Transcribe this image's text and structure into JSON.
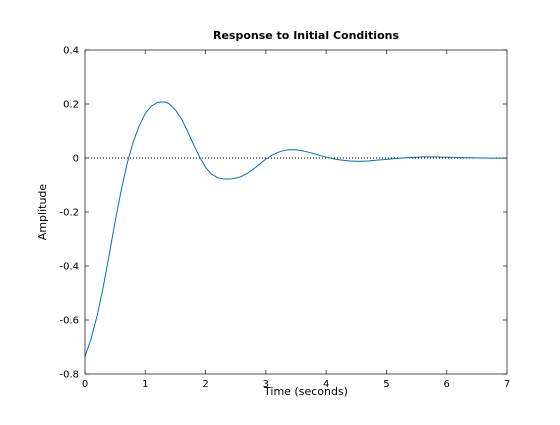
{
  "chart_data": {
    "type": "line",
    "title": "Response to Initial Conditions",
    "xlabel": "Time (seconds)",
    "ylabel": "Amplitude",
    "xlim": [
      0,
      7
    ],
    "ylim": [
      -0.8,
      0.4
    ],
    "x_ticks": [
      0,
      1,
      2,
      3,
      4,
      5,
      6,
      7
    ],
    "y_ticks": [
      -0.8,
      -0.6,
      -0.4,
      -0.2,
      0,
      0.2,
      0.4
    ],
    "grid": false,
    "reference_line": {
      "y": 0,
      "style": "dotted",
      "color": "#000000"
    },
    "series": [
      {
        "color": "#0072bd",
        "x": [
          0,
          0.1,
          0.2,
          0.3,
          0.4,
          0.5,
          0.6,
          0.7,
          0.8,
          0.9,
          1.0,
          1.1,
          1.2,
          1.3,
          1.35,
          1.4,
          1.5,
          1.6,
          1.7,
          1.8,
          1.9,
          2.0,
          2.1,
          2.2,
          2.3,
          2.4,
          2.5,
          2.55,
          2.6,
          2.7,
          2.8,
          2.9,
          3.0,
          3.1,
          3.2,
          3.3,
          3.4,
          3.5,
          3.6,
          3.7,
          3.8,
          3.9,
          4.0,
          4.1,
          4.2,
          4.3,
          4.4,
          4.5,
          4.6,
          4.7,
          4.8,
          4.9,
          5.0,
          5.2,
          5.4,
          5.6,
          5.8,
          6.0,
          6.2,
          6.4,
          6.6,
          6.8,
          7.0
        ],
        "y": [
          -0.735,
          -0.67,
          -0.585,
          -0.48,
          -0.36,
          -0.235,
          -0.12,
          -0.02,
          0.06,
          0.12,
          0.165,
          0.192,
          0.206,
          0.208,
          0.206,
          0.2,
          0.178,
          0.145,
          0.1,
          0.05,
          0.005,
          -0.035,
          -0.06,
          -0.073,
          -0.078,
          -0.078,
          -0.074,
          -0.072,
          -0.068,
          -0.056,
          -0.04,
          -0.022,
          -0.004,
          0.01,
          0.021,
          0.028,
          0.031,
          0.03,
          0.027,
          0.022,
          0.016,
          0.009,
          0.003,
          -0.002,
          -0.006,
          -0.009,
          -0.011,
          -0.012,
          -0.012,
          -0.011,
          -0.009,
          -0.007,
          -0.005,
          -0.001,
          0.002,
          0.004,
          0.004,
          0.003,
          0.002,
          0.001,
          0.0,
          -0.001,
          -0.001
        ]
      }
    ]
  }
}
